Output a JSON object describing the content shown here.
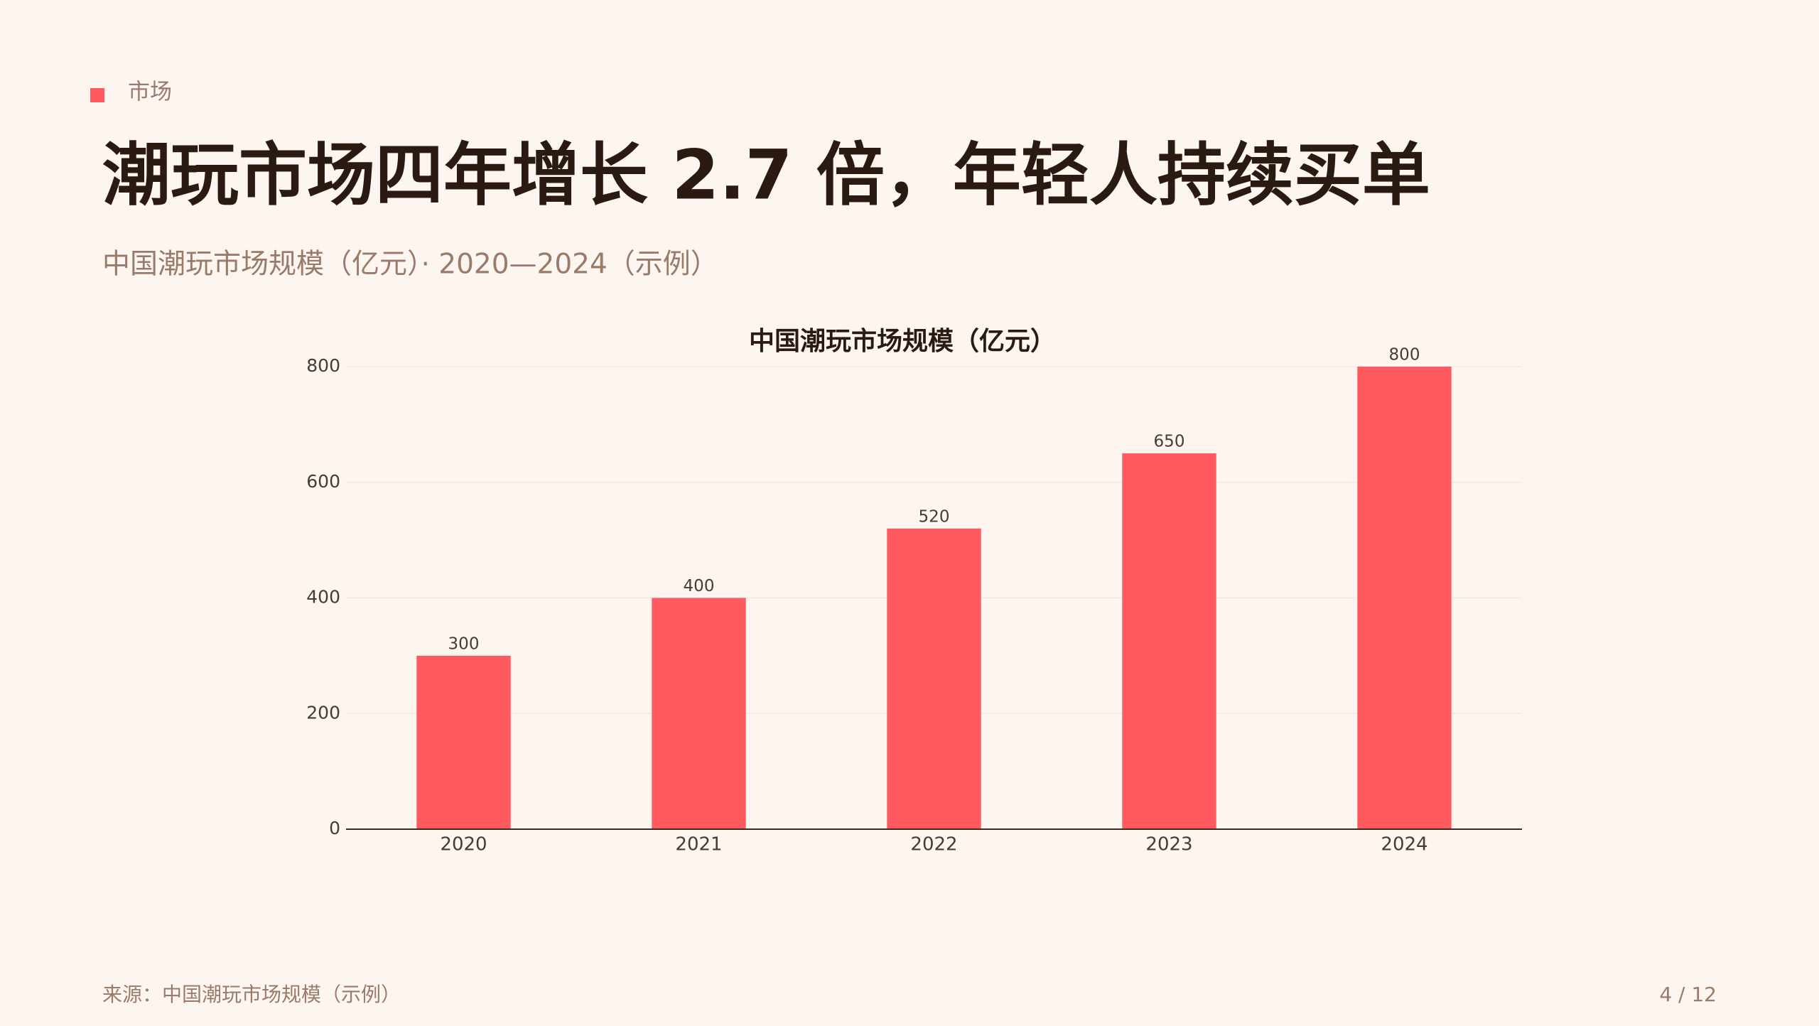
{
  "header": {
    "tag": "市场",
    "title": "潮玩市场四年增长 2.7 倍，年轻人持续买单",
    "subtitle": "中国潮玩市场规模（亿元）· 2020—2024（示例）"
  },
  "chart_data": {
    "type": "bar",
    "title": "中国潮玩市场规模（亿元）",
    "categories": [
      "2020",
      "2021",
      "2022",
      "2023",
      "2024"
    ],
    "values": [
      300,
      400,
      520,
      650,
      800
    ],
    "color": "#ff5a5f",
    "ylim": [
      0,
      800
    ],
    "yticks": [
      0,
      200,
      400,
      600,
      800
    ],
    "grid": true
  },
  "footer": {
    "source": "来源：中国潮玩市场规模（示例）",
    "page": "4 / 12"
  }
}
